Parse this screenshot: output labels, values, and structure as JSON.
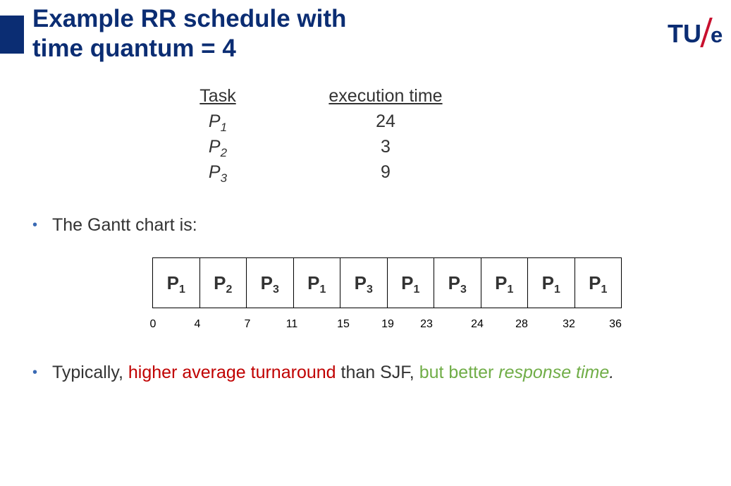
{
  "slide": {
    "title_line1": "Example RR schedule with",
    "title_line2": "time quantum = 4",
    "logo": {
      "letters": "TU",
      "slash_color": "#c8102e",
      "suffix": "e"
    },
    "accent_color": "#0b2d73"
  },
  "task_table": {
    "header_task": "Task",
    "header_exec": "execution time",
    "rows": [
      {
        "task": "P",
        "task_sub": "1",
        "exec": "24"
      },
      {
        "task": "P",
        "task_sub": "2",
        "exec": "3"
      },
      {
        "task": "P",
        "task_sub": "3",
        "exec": "9"
      }
    ]
  },
  "bullet1": {
    "text": "The Gantt chart is:"
  },
  "gantt": {
    "cells": [
      {
        "p": "P",
        "sub": "1"
      },
      {
        "p": "P",
        "sub": "2"
      },
      {
        "p": "P",
        "sub": "3"
      },
      {
        "p": "P",
        "sub": "1"
      },
      {
        "p": "P",
        "sub": "3"
      },
      {
        "p": "P",
        "sub": "1"
      },
      {
        "p": "P",
        "sub": "3"
      },
      {
        "p": "P",
        "sub": "1"
      },
      {
        "p": "P",
        "sub": "1"
      },
      {
        "p": "P",
        "sub": "1"
      }
    ],
    "ticks": [
      "0",
      "4",
      "7",
      "11",
      "15",
      "19",
      "23",
      "24",
      "28",
      "32",
      "36"
    ]
  },
  "bullet2": {
    "part1": "Typically, ",
    "part2": "higher average turnaround",
    "part3": " than SJF, ",
    "part4": "but better ",
    "part5": "response time",
    "part6": ".",
    "colors": {
      "red": "#c00000",
      "green": "#70ad47"
    }
  }
}
